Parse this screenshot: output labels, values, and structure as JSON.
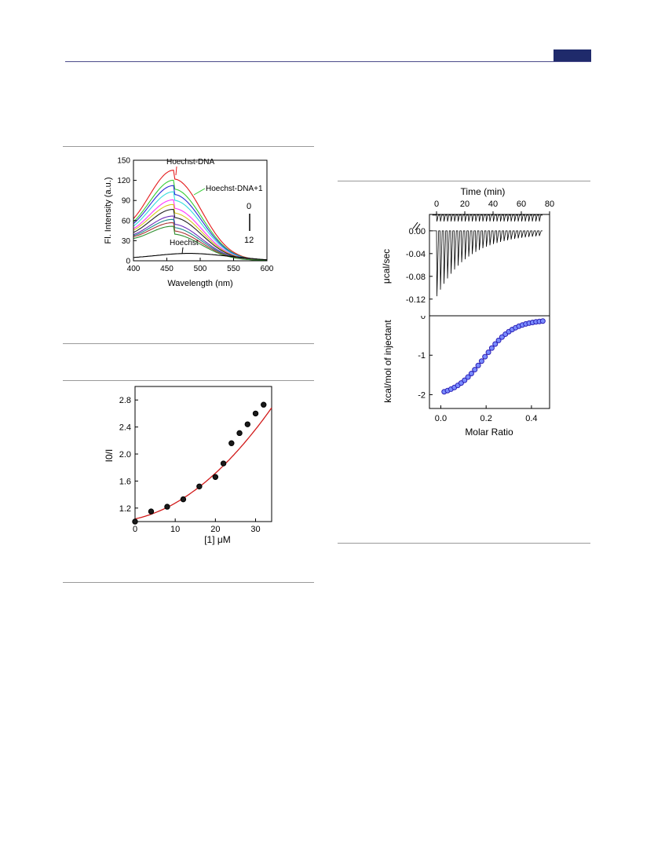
{
  "colors": {
    "header": "#1f2a6b",
    "fit_line": "#d11a1a",
    "marker": "#3b2fd0"
  },
  "chart_data": [
    {
      "type": "line",
      "xlabel": "Wavelength (nm)",
      "ylabel": "Fl. Intensity (a.u.)",
      "xlim": [
        400,
        600
      ],
      "ylim": [
        0,
        150
      ],
      "xticks": [
        400,
        450,
        500,
        550,
        600
      ],
      "yticks": [
        0,
        30,
        60,
        90,
        120,
        150
      ],
      "annotations": {
        "top": "Hoechst-DNA",
        "mid": "Hoechst-DNA+1",
        "bottom": "Hoechst",
        "range_start": "0",
        "range_end": "12"
      },
      "peak_nm": 462,
      "series": [
        {
          "color": "#e41a1c",
          "base": 22,
          "peak": 128
        },
        {
          "color": "#33cc33",
          "base": 22,
          "peak": 113
        },
        {
          "color": "#2b2bd6",
          "base": 22,
          "peak": 105
        },
        {
          "color": "#33dddd",
          "base": 21,
          "peak": 96
        },
        {
          "color": "#ff33ff",
          "base": 21,
          "peak": 84
        },
        {
          "color": "#d6c81a",
          "base": 21,
          "peak": 77
        },
        {
          "color": "#222222",
          "base": 20,
          "peak": 70
        },
        {
          "color": "#6b2bb8",
          "base": 20,
          "peak": 60
        },
        {
          "color": "#1a8c8c",
          "base": 20,
          "peak": 55
        },
        {
          "color": "#aa3333",
          "base": 20,
          "peak": 50
        },
        {
          "color": "#2f8f2f",
          "base": 19,
          "peak": 45
        }
      ],
      "hoechst": {
        "color": "#000000",
        "base": 3,
        "peak": 11,
        "peak_nm": 483
      }
    },
    {
      "type": "scatter",
      "xlabel": "[1] μM",
      "ylabel": "I0/I",
      "xlim": [
        0,
        34
      ],
      "ylim": [
        1.0,
        3.0
      ],
      "xticks": [
        0,
        10,
        20,
        30
      ],
      "yticks": [
        1.2,
        1.6,
        2.0,
        2.4,
        2.8
      ],
      "points": [
        [
          0,
          1.0
        ],
        [
          4,
          1.15
        ],
        [
          8,
          1.22
        ],
        [
          12,
          1.33
        ],
        [
          16,
          1.52
        ],
        [
          20,
          1.66
        ],
        [
          22,
          1.86
        ],
        [
          24,
          2.16
        ],
        [
          26,
          2.31
        ],
        [
          28,
          2.44
        ],
        [
          30,
          2.6
        ],
        [
          32,
          2.73
        ]
      ],
      "fit": {
        "a": 1.04,
        "b": 0.013,
        "c": 0.00104
      }
    },
    {
      "type": "line",
      "xlabel": "Time (min)",
      "ylabel": "μcal/sec",
      "xlim": [
        -5,
        80
      ],
      "ylim": [
        -0.13,
        0.015
      ],
      "xticks": [
        0,
        20,
        40,
        60,
        80
      ],
      "yticks": [
        0.0,
        -0.04,
        -0.08,
        -0.12
      ],
      "ytick_labels": [
        "0.00",
        "-0.04",
        "-0.08",
        "-0.12"
      ],
      "injections": 30,
      "first_peak": -0.115,
      "last_peak": -0.009
    },
    {
      "type": "scatter",
      "xlabel": "Molar Ratio",
      "ylabel": "kcal/mol of injectant",
      "xlim": [
        -0.05,
        0.48
      ],
      "ylim": [
        -2.35,
        0.0
      ],
      "xticks": [
        0.0,
        0.2,
        0.4
      ],
      "xtick_labels": [
        "0.0",
        "0.2",
        "0.4"
      ],
      "yticks": [
        0,
        -1,
        -2
      ],
      "ytick_labels": [
        "0",
        "-1",
        "-2"
      ],
      "points_n": 30,
      "x_start": 0.015,
      "x_end": 0.45
    }
  ]
}
